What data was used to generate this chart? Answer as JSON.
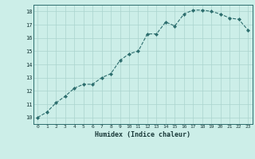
{
  "x": [
    0,
    1,
    2,
    3,
    4,
    5,
    6,
    7,
    8,
    9,
    10,
    11,
    12,
    13,
    14,
    15,
    16,
    17,
    18,
    19,
    20,
    21,
    22,
    23
  ],
  "y": [
    10.0,
    10.4,
    11.1,
    11.6,
    12.2,
    12.5,
    12.5,
    13.0,
    13.3,
    14.3,
    14.8,
    15.0,
    16.3,
    16.3,
    17.2,
    16.9,
    17.8,
    18.1,
    18.1,
    18.0,
    17.8,
    17.5,
    17.4,
    16.6
  ],
  "xlabel": "Humidex (Indice chaleur)",
  "xlim": [
    -0.5,
    23.5
  ],
  "ylim": [
    9.5,
    18.5
  ],
  "yticks": [
    10,
    11,
    12,
    13,
    14,
    15,
    16,
    17,
    18
  ],
  "xticks": [
    0,
    1,
    2,
    3,
    4,
    5,
    6,
    7,
    8,
    9,
    10,
    11,
    12,
    13,
    14,
    15,
    16,
    17,
    18,
    19,
    20,
    21,
    22,
    23
  ],
  "line_color": "#2d6e6e",
  "marker_color": "#2d6e6e",
  "bg_color": "#cceee8",
  "grid_color": "#aad4ce"
}
